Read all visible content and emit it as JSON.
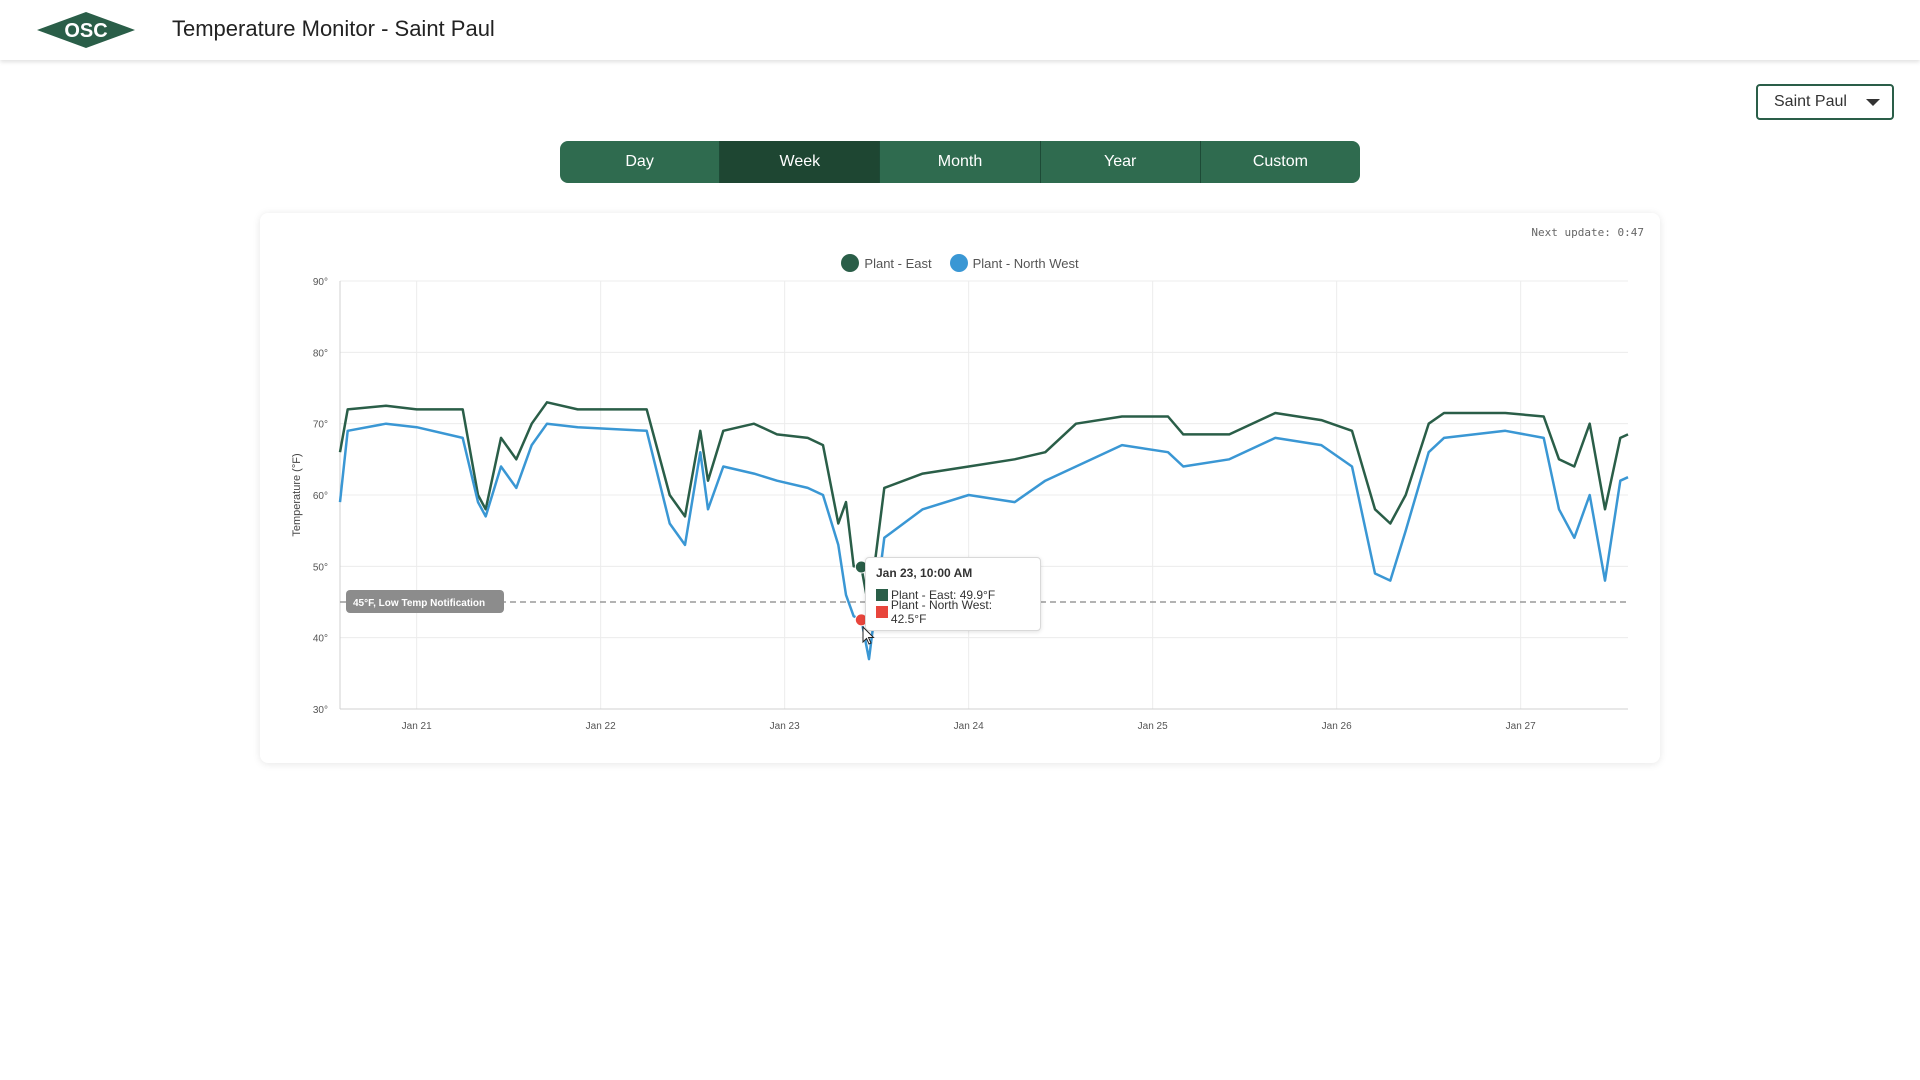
{
  "header": {
    "logo_text": "OSC",
    "title": "Temperature Monitor - Saint Paul"
  },
  "location_select": {
    "value": "Saint Paul"
  },
  "range_tabs": [
    {
      "label": "Day",
      "active": false
    },
    {
      "label": "Week",
      "active": true
    },
    {
      "label": "Month",
      "active": false
    },
    {
      "label": "Year",
      "active": false
    },
    {
      "label": "Custom",
      "active": false
    }
  ],
  "chart_card": {
    "next_update_label": "Next update: ",
    "next_update_value": "0:47"
  },
  "tooltip": {
    "title": "Jan 23, 10:00 AM",
    "rows": [
      {
        "text": "Plant - East: 49.9°F",
        "color": "#2a5e48"
      },
      {
        "text": "Plant - North West: 42.5°F",
        "color": "#e8453c"
      }
    ]
  },
  "chart_data": {
    "type": "line",
    "ylabel": "Temperature (°F)",
    "ylim": [
      30,
      90
    ],
    "y_ticks": [
      30,
      40,
      50,
      60,
      70,
      80,
      90
    ],
    "y_tick_suffix": "°",
    "xlim": [
      "2025-01-20T14:00",
      "2025-01-27T14:00"
    ],
    "x_ticks": [
      "Jan 21",
      "Jan 22",
      "Jan 23",
      "Jan 24",
      "Jan 25",
      "Jan 26",
      "Jan 27"
    ],
    "legend_position": "top-center",
    "grid": true,
    "threshold": {
      "value": 45,
      "label": "45°F, Low Temp Notification",
      "color": "#9a9a9a"
    },
    "series": [
      {
        "name": "Plant - East",
        "color": "#2a5e48",
        "points": [
          [
            "2025-01-20T14:00",
            66
          ],
          [
            "2025-01-20T15:00",
            72
          ],
          [
            "2025-01-20T20:00",
            72.5
          ],
          [
            "2025-01-21T00:00",
            72
          ],
          [
            "2025-01-21T06:00",
            72
          ],
          [
            "2025-01-21T08:00",
            60
          ],
          [
            "2025-01-21T09:00",
            58
          ],
          [
            "2025-01-21T11:00",
            68
          ],
          [
            "2025-01-21T13:00",
            65
          ],
          [
            "2025-01-21T15:00",
            70
          ],
          [
            "2025-01-21T17:00",
            73
          ],
          [
            "2025-01-21T21:00",
            72
          ],
          [
            "2025-01-22T06:00",
            72
          ],
          [
            "2025-01-22T09:00",
            60
          ],
          [
            "2025-01-22T11:00",
            57
          ],
          [
            "2025-01-22T13:00",
            69
          ],
          [
            "2025-01-22T14:00",
            62
          ],
          [
            "2025-01-22T16:00",
            69
          ],
          [
            "2025-01-22T20:00",
            70
          ],
          [
            "2025-01-22T23:00",
            68.5
          ],
          [
            "2025-01-23T03:00",
            68
          ],
          [
            "2025-01-23T05:00",
            67
          ],
          [
            "2025-01-23T07:00",
            56
          ],
          [
            "2025-01-23T08:00",
            59
          ],
          [
            "2025-01-23T09:00",
            50
          ],
          [
            "2025-01-23T10:00",
            49.9
          ],
          [
            "2025-01-23T11:00",
            44
          ],
          [
            "2025-01-23T13:00",
            61
          ],
          [
            "2025-01-23T18:00",
            63
          ],
          [
            "2025-01-24T00:00",
            64
          ],
          [
            "2025-01-24T06:00",
            65
          ],
          [
            "2025-01-24T10:00",
            66
          ],
          [
            "2025-01-24T14:00",
            70
          ],
          [
            "2025-01-24T20:00",
            71
          ],
          [
            "2025-01-25T02:00",
            71
          ],
          [
            "2025-01-25T04:00",
            68.5
          ],
          [
            "2025-01-25T10:00",
            68.5
          ],
          [
            "2025-01-25T16:00",
            71.5
          ],
          [
            "2025-01-25T22:00",
            70.5
          ],
          [
            "2025-01-26T02:00",
            69
          ],
          [
            "2025-01-26T05:00",
            58
          ],
          [
            "2025-01-26T07:00",
            56
          ],
          [
            "2025-01-26T09:00",
            60
          ],
          [
            "2025-01-26T12:00",
            70
          ],
          [
            "2025-01-26T14:00",
            71.5
          ],
          [
            "2025-01-26T22:00",
            71.5
          ],
          [
            "2025-01-27T03:00",
            71
          ],
          [
            "2025-01-27T05:00",
            65
          ],
          [
            "2025-01-27T07:00",
            64
          ],
          [
            "2025-01-27T09:00",
            70
          ],
          [
            "2025-01-27T11:00",
            58
          ],
          [
            "2025-01-27T13:00",
            68
          ],
          [
            "2025-01-27T14:00",
            68.5
          ]
        ]
      },
      {
        "name": "Plant - North West",
        "color": "#3a97d4",
        "points": [
          [
            "2025-01-20T14:00",
            59
          ],
          [
            "2025-01-20T15:00",
            69
          ],
          [
            "2025-01-20T20:00",
            70
          ],
          [
            "2025-01-21T00:00",
            69.5
          ],
          [
            "2025-01-21T06:00",
            68
          ],
          [
            "2025-01-21T08:00",
            59
          ],
          [
            "2025-01-21T09:00",
            57
          ],
          [
            "2025-01-21T11:00",
            64
          ],
          [
            "2025-01-21T13:00",
            61
          ],
          [
            "2025-01-21T15:00",
            67
          ],
          [
            "2025-01-21T17:00",
            70
          ],
          [
            "2025-01-21T21:00",
            69.5
          ],
          [
            "2025-01-22T06:00",
            69
          ],
          [
            "2025-01-22T09:00",
            56
          ],
          [
            "2025-01-22T11:00",
            53
          ],
          [
            "2025-01-22T13:00",
            66
          ],
          [
            "2025-01-22T14:00",
            58
          ],
          [
            "2025-01-22T16:00",
            64
          ],
          [
            "2025-01-22T20:00",
            63
          ],
          [
            "2025-01-22T23:00",
            62
          ],
          [
            "2025-01-23T03:00",
            61
          ],
          [
            "2025-01-23T05:00",
            60
          ],
          [
            "2025-01-23T07:00",
            53
          ],
          [
            "2025-01-23T08:00",
            46
          ],
          [
            "2025-01-23T09:00",
            43
          ],
          [
            "2025-01-23T10:00",
            42.5
          ],
          [
            "2025-01-23T11:00",
            37
          ],
          [
            "2025-01-23T13:00",
            54
          ],
          [
            "2025-01-23T18:00",
            58
          ],
          [
            "2025-01-24T00:00",
            60
          ],
          [
            "2025-01-24T06:00",
            59
          ],
          [
            "2025-01-24T10:00",
            62
          ],
          [
            "2025-01-24T14:00",
            64
          ],
          [
            "2025-01-24T20:00",
            67
          ],
          [
            "2025-01-25T02:00",
            66
          ],
          [
            "2025-01-25T04:00",
            64
          ],
          [
            "2025-01-25T10:00",
            65
          ],
          [
            "2025-01-25T16:00",
            68
          ],
          [
            "2025-01-25T22:00",
            67
          ],
          [
            "2025-01-26T02:00",
            64
          ],
          [
            "2025-01-26T05:00",
            49
          ],
          [
            "2025-01-26T07:00",
            48
          ],
          [
            "2025-01-26T09:00",
            55
          ],
          [
            "2025-01-26T12:00",
            66
          ],
          [
            "2025-01-26T14:00",
            68
          ],
          [
            "2025-01-26T22:00",
            69
          ],
          [
            "2025-01-27T03:00",
            68
          ],
          [
            "2025-01-27T05:00",
            58
          ],
          [
            "2025-01-27T07:00",
            54
          ],
          [
            "2025-01-27T09:00",
            60
          ],
          [
            "2025-01-27T11:00",
            48
          ],
          [
            "2025-01-27T13:00",
            62
          ],
          [
            "2025-01-27T14:00",
            62.5
          ]
        ]
      }
    ]
  }
}
